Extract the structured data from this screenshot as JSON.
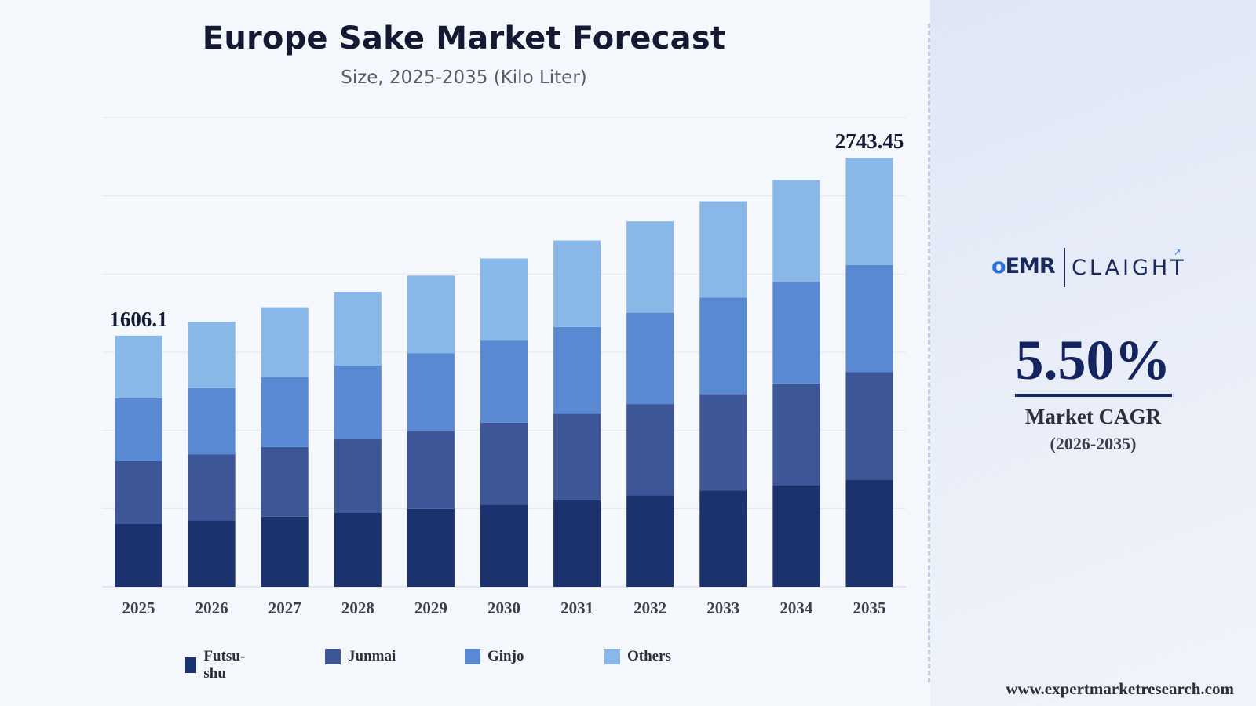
{
  "title": "Europe Sake Market Forecast",
  "subtitle": "Size, 2025-2035 (Kilo Liter)",
  "chart_data": {
    "type": "bar",
    "stacked": true,
    "title": "Europe Sake Market Forecast",
    "subtitle": "Size, 2025-2035 (Kilo Liter)",
    "categories": [
      "2025",
      "2026",
      "2027",
      "2028",
      "2029",
      "2030",
      "2031",
      "2032",
      "2033",
      "2034",
      "2035"
    ],
    "series": [
      {
        "name": "Futsu-shu",
        "color": "#1c326e",
        "values": [
          401.5,
          423.6,
          447.0,
          471.5,
          497.5,
          524.8,
          553.7,
          584.2,
          616.3,
          650.2,
          686.0
        ]
      },
      {
        "name": "Junmai",
        "color": "#3c5698",
        "values": [
          401.5,
          423.6,
          447.0,
          471.5,
          497.5,
          524.8,
          553.7,
          584.2,
          616.3,
          650.2,
          686.0
        ]
      },
      {
        "name": "Ginjo",
        "color": "#5889d2",
        "values": [
          401.5,
          423.6,
          447.0,
          471.5,
          497.5,
          524.8,
          553.7,
          584.2,
          616.3,
          650.2,
          686.0
        ]
      },
      {
        "name": "Others",
        "color": "#88b7e8",
        "values": [
          401.6,
          423.6,
          447.0,
          471.5,
          497.5,
          524.8,
          553.7,
          584.2,
          616.3,
          650.2,
          685.45
        ]
      }
    ],
    "data_labels": [
      {
        "category": "2025",
        "text": "1606.1"
      },
      {
        "category": "2035",
        "text": "2743.45"
      }
    ],
    "ylim": [
      0,
      3000
    ],
    "grid": true,
    "legend_position": "bottom"
  },
  "side_panel": {
    "logo_left": "EMR",
    "logo_right": "CLAIGHT",
    "cagr_value": "5.50%",
    "cagr_label": "Market CAGR",
    "cagr_period": "(2026-2035)",
    "website": "www.expertmarketresearch.com"
  }
}
